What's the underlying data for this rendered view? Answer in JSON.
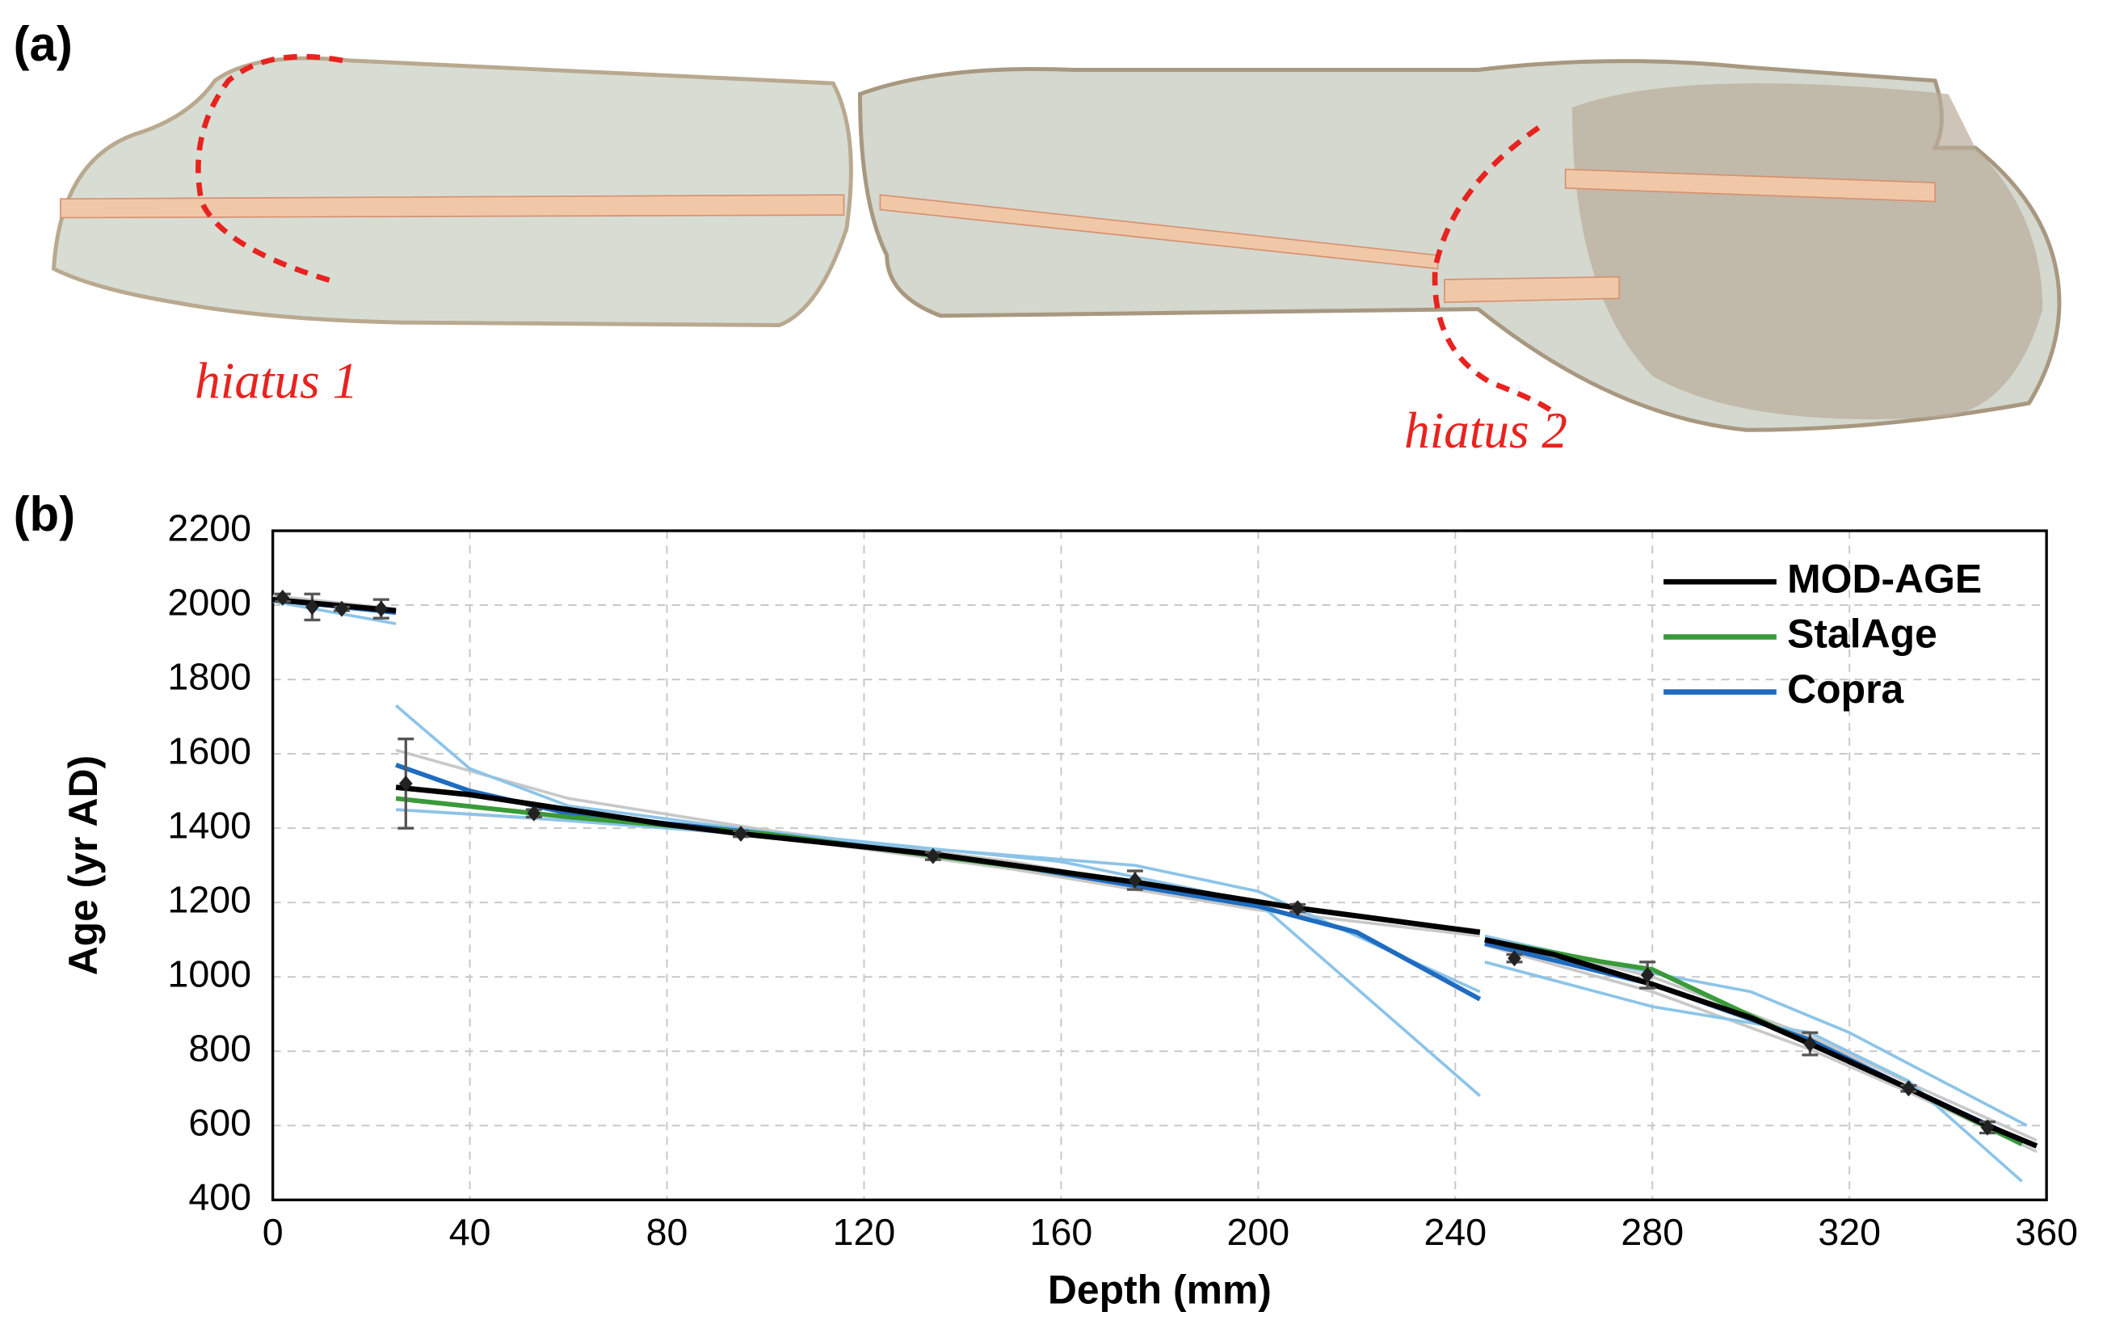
{
  "panel_a": {
    "label": "(a)",
    "hiatus_1": "hiatus 1",
    "hiatus_2": "hiatus 2"
  },
  "chart_data": {
    "type": "line",
    "panel_label": "(b)",
    "x_label": "Depth (mm)",
    "y_label": "Age (yr AD)",
    "xlim": [
      0,
      360
    ],
    "xticks": [
      0,
      40,
      80,
      120,
      160,
      200,
      240,
      280,
      320,
      360
    ],
    "ylim": [
      400,
      2200
    ],
    "yticks": [
      400,
      600,
      800,
      1000,
      1200,
      1400,
      1600,
      1800,
      2000,
      2200
    ],
    "grid": true,
    "legend": "upper right",
    "series": [
      {
        "color": "#c8c8c8",
        "x": [
          0,
          25,
          null,
          25,
          60,
          100,
          150,
          200,
          245,
          null,
          246,
          280,
          312,
          332,
          358
        ],
        "values": [
          2025,
          1990,
          null,
          1610,
          1480,
          1395,
          1310,
          1195,
          1125,
          null,
          1110,
          1000,
          840,
          715,
          560
        ]
      },
      {
        "color": "#c8c8c8",
        "x": [
          25,
          60,
          100,
          150,
          200,
          245,
          null,
          246,
          280,
          312,
          332,
          358
        ],
        "values": [
          1450,
          1420,
          1380,
          1290,
          1180,
          1110,
          null,
          1085,
          960,
          805,
          690,
          530
        ]
      },
      {
        "color": "#8cc4e8",
        "x": [
          0,
          25,
          null,
          25,
          40,
          60,
          100,
          160,
          200,
          245,
          null,
          246,
          280,
          300,
          320,
          356
        ],
        "values": [
          2010,
          1950,
          null,
          1730,
          1560,
          1460,
          1390,
          1310,
          1200,
          680,
          null,
          1110,
          1010,
          960,
          850,
          600
        ]
      },
      {
        "color": "#8cc4e8",
        "x": [
          25,
          50,
          100,
          175,
          200,
          230,
          245,
          null,
          246,
          280,
          312,
          332,
          355
        ],
        "values": [
          1450,
          1430,
          1380,
          1300,
          1230,
          1050,
          960,
          null,
          1040,
          920,
          850,
          720,
          450
        ]
      },
      {
        "name": "Copra",
        "color": "#1f6cc0",
        "x": [
          0,
          25,
          null,
          25,
          40,
          60,
          100,
          150,
          200,
          220,
          245,
          null,
          246,
          280,
          312,
          332,
          355
        ],
        "values": [
          2015,
          1980,
          null,
          1570,
          1500,
          1440,
          1385,
          1300,
          1190,
          1120,
          940,
          null,
          1090,
          980,
          830,
          700,
          560
        ]
      },
      {
        "name": "StalAge",
        "color": "#3a9a3a",
        "x": [
          25,
          60,
          100,
          175,
          208,
          245,
          null,
          246,
          270,
          280,
          312,
          332,
          355
        ],
        "values": [
          1480,
          1430,
          1385,
          1255,
          1185,
          1120,
          null,
          1100,
          1040,
          1020,
          820,
          700,
          550
        ]
      },
      {
        "name": "MOD-AGE",
        "color": "#000000",
        "x": [
          0,
          25,
          null,
          25,
          40,
          55,
          80,
          95,
          134,
          175,
          208,
          245,
          null,
          246,
          260,
          280,
          300,
          312,
          332,
          348,
          358
        ],
        "values": [
          2015,
          1985,
          null,
          1510,
          1490,
          1460,
          1410,
          1385,
          1330,
          1255,
          1185,
          1120,
          null,
          1100,
          1060,
          980,
          890,
          820,
          700,
          600,
          545
        ]
      }
    ],
    "dates": {
      "x": [
        2,
        8,
        14,
        22,
        27,
        53,
        95,
        134,
        175,
        208,
        252,
        279,
        312,
        332,
        348
      ],
      "values": [
        2020,
        1995,
        1990,
        1990,
        1520,
        1440,
        1385,
        1325,
        1260,
        1185,
        1050,
        1005,
        820,
        700,
        595
      ],
      "errors": [
        10,
        35,
        5,
        25,
        120,
        10,
        8,
        10,
        25,
        10,
        10,
        35,
        30,
        8,
        15
      ]
    }
  }
}
